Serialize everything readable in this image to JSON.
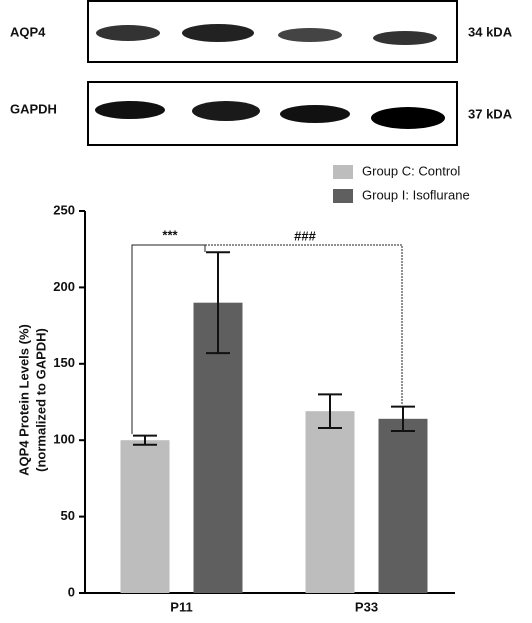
{
  "blot": {
    "rows": [
      {
        "label": "AQP4",
        "size": "34 kDA"
      },
      {
        "label": "GAPDH",
        "size": "37 kDA"
      }
    ]
  },
  "chart_data": {
    "type": "bar",
    "y_label": [
      "AQP4 Protein Levels (%)",
      "(normalized to GAPDH)"
    ],
    "categories": [
      "P11",
      "P33"
    ],
    "series": [
      {
        "name": "Group C: Control",
        "color": "#bdbdbd",
        "values": [
          100,
          119
        ],
        "errors": [
          3,
          11
        ]
      },
      {
        "name": "Group I: Isoflurane",
        "color": "#5f5f5f",
        "values": [
          190,
          114
        ],
        "errors": [
          33,
          8
        ]
      }
    ],
    "annotations": [
      "***",
      "###"
    ],
    "ylim": [
      0,
      250
    ],
    "yticks": [
      0,
      50,
      100,
      150,
      200,
      250
    ]
  }
}
